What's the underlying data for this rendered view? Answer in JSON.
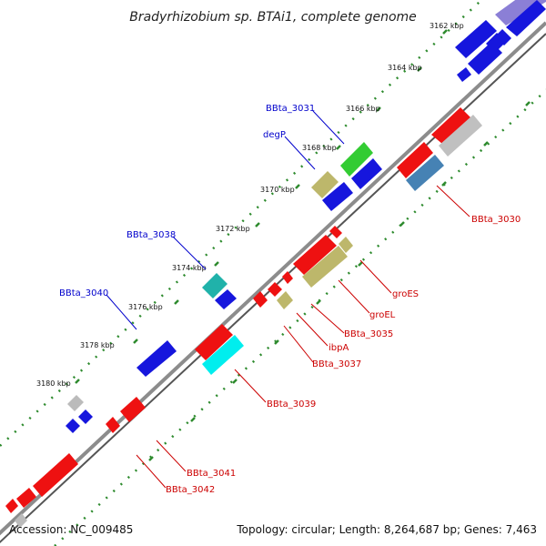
{
  "title": "Bradyrhizobium sp. BTAi1, complete genome",
  "accession": "Accession: NC_009485",
  "topology": "Topology: circular; Length: 8,264,687 bp; Genes: 7,463",
  "colors": {
    "backbone": "#8c8c8c",
    "ticks": "#2e8b2e",
    "forward_label": "#0000cc",
    "reverse_label": "#cc0000"
  },
  "kbp_labels": [
    "3162 kbp",
    "3164 kbp",
    "3166 kbp",
    "3168 kbp",
    "3170 kbp",
    "3172 kbp",
    "3174 kbp",
    "3176 kbp",
    "3178 kbp",
    "3180 kbp"
  ],
  "forward_labels": [
    "BBta_3031",
    "degP",
    "BBta_3038",
    "BBta_3040"
  ],
  "reverse_labels": [
    "BBta_3030",
    "groES",
    "groEL",
    "BBta_3035",
    "ibpA",
    "BBta_3037",
    "BBta_3039",
    "BBta_3041",
    "BBta_3042"
  ]
}
